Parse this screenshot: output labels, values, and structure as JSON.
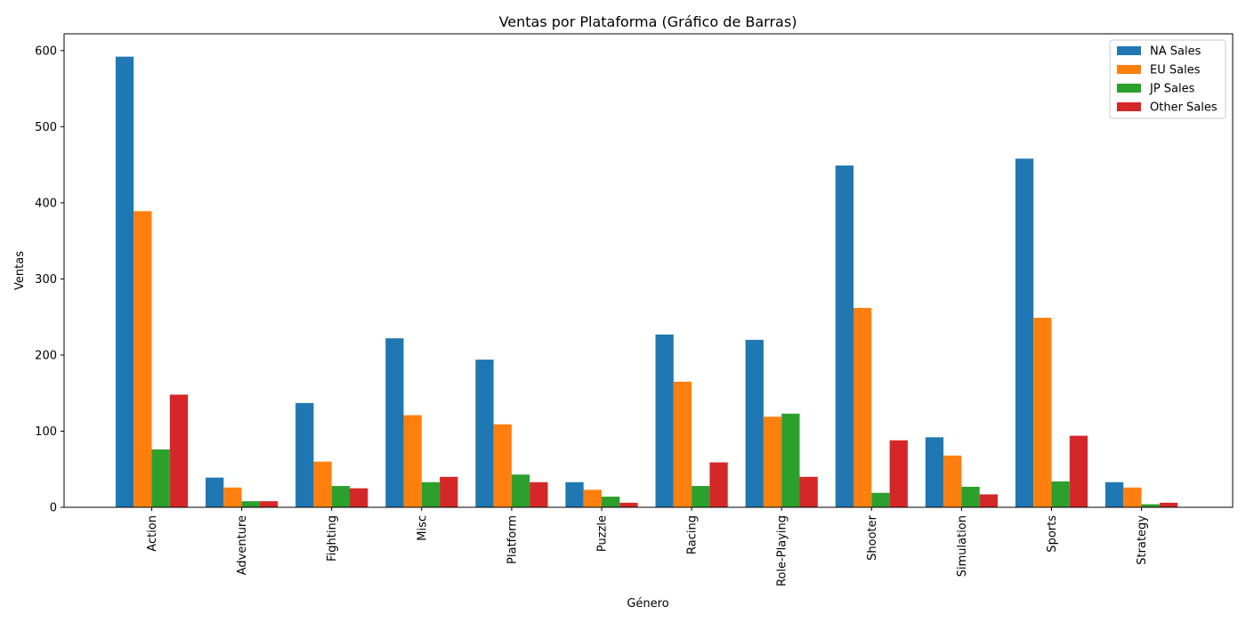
{
  "chart_data": {
    "type": "bar",
    "title": "Ventas por Plataforma (Gráfico de Barras)",
    "xlabel": "Género",
    "ylabel": "Ventas",
    "ylim": [
      0,
      622
    ],
    "yticks": [
      0,
      100,
      200,
      300,
      400,
      500,
      600
    ],
    "grid": false,
    "legend_position": "top-right",
    "categories": [
      "Action",
      "Adventure",
      "Fighting",
      "Misc",
      "Platform",
      "Puzzle",
      "Racing",
      "Role-Playing",
      "Shooter",
      "Simulation",
      "Sports",
      "Strategy"
    ],
    "series": [
      {
        "name": "NA Sales",
        "color": "#1f77b4",
        "values": [
          592,
          39,
          137,
          222,
          194,
          33,
          227,
          220,
          449,
          92,
          458,
          33
        ]
      },
      {
        "name": "EU Sales",
        "color": "#ff7f0e",
        "values": [
          389,
          26,
          60,
          121,
          109,
          23,
          165,
          119,
          262,
          68,
          249,
          26
        ]
      },
      {
        "name": "JP Sales",
        "color": "#2ca02c",
        "values": [
          76,
          8,
          28,
          33,
          43,
          14,
          28,
          123,
          19,
          27,
          34,
          4
        ]
      },
      {
        "name": "Other Sales",
        "color": "#d62728",
        "values": [
          148,
          8,
          25,
          40,
          33,
          6,
          59,
          40,
          88,
          17,
          94,
          6
        ]
      }
    ]
  }
}
